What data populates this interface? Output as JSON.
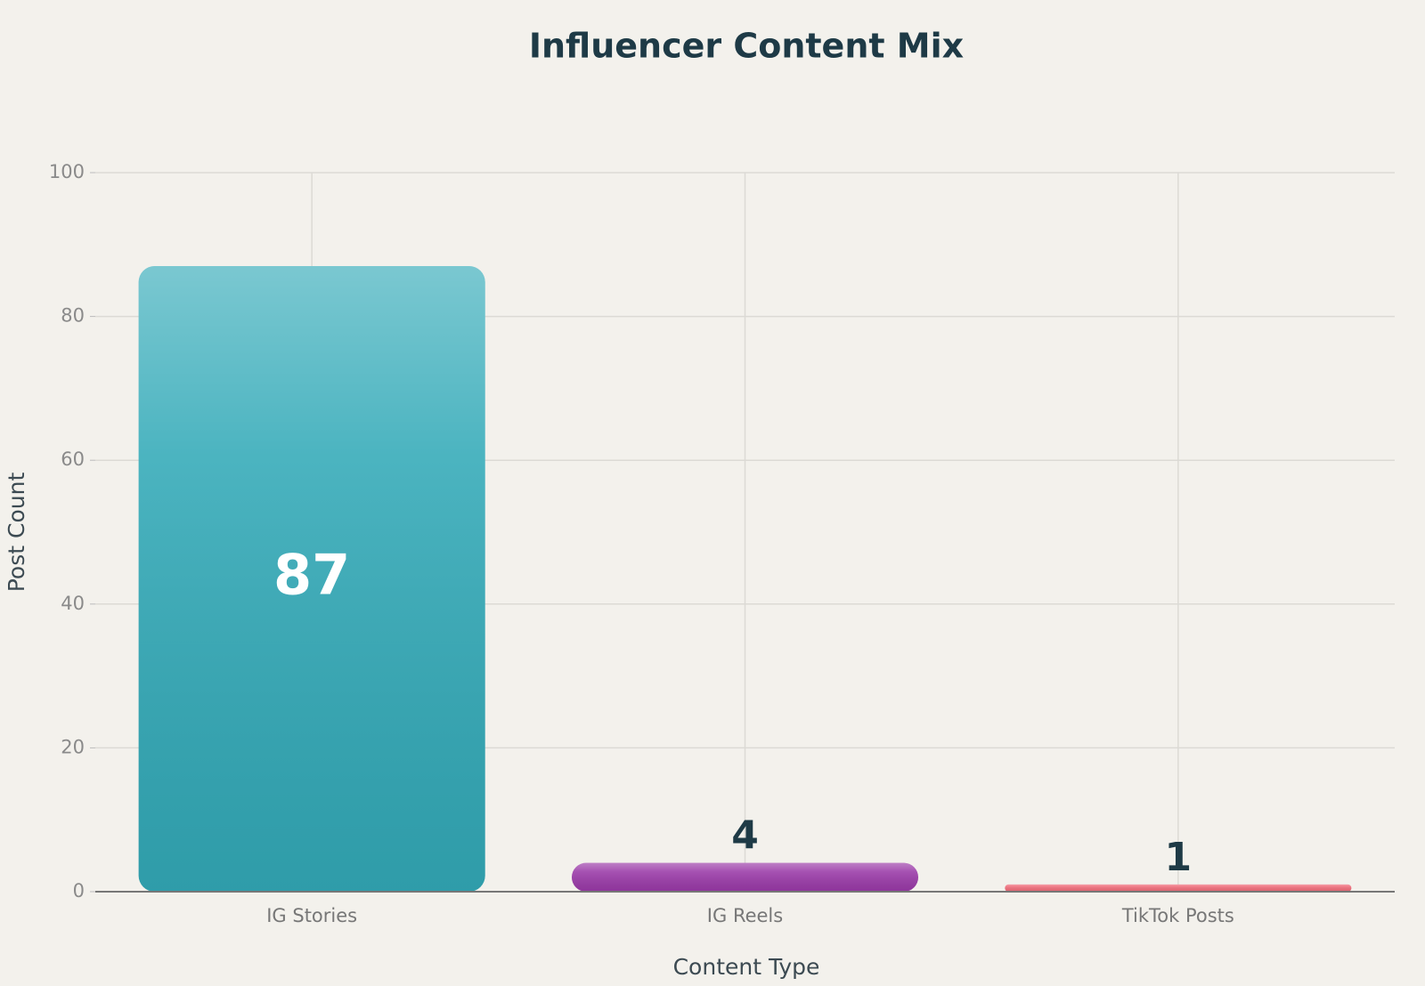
{
  "chart_data": {
    "type": "bar",
    "title": "Influencer Content Mix",
    "x_label": "Content Type",
    "y_label": "Post Count",
    "categories": [
      "IG Stories",
      "IG Reels",
      "TikTok Posts"
    ],
    "values": [
      87,
      4,
      1
    ],
    "colors": [
      "#33aab8",
      "#9a3aa8",
      "#ee6a78"
    ],
    "ylim": [
      0,
      100
    ],
    "yticks": [
      0,
      20,
      40,
      60,
      80,
      100
    ],
    "grid": true
  }
}
